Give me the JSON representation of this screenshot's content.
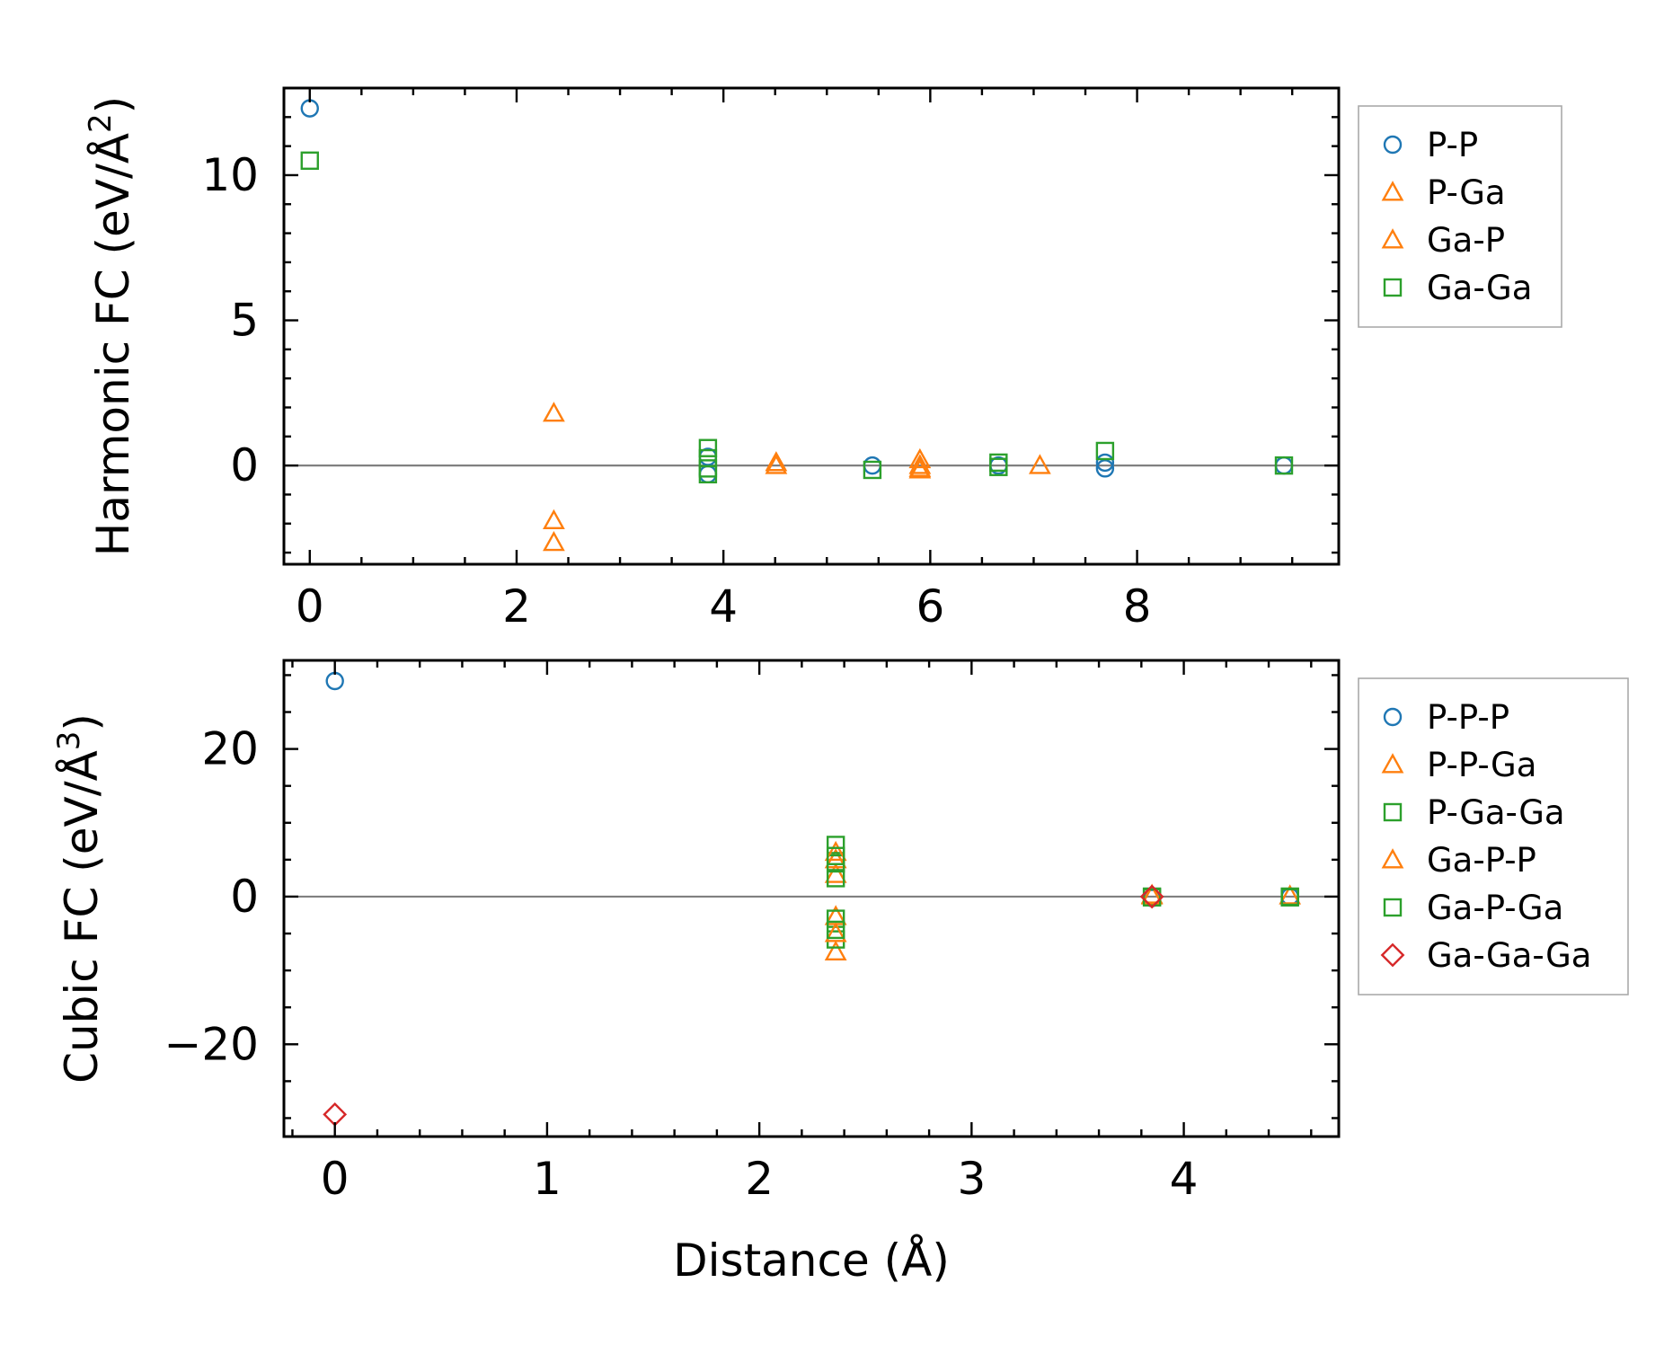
{
  "chart_data": [
    {
      "type": "scatter",
      "ylabel": "Harmonic FC (eV/Å²)",
      "ylabel_main": "Harmonic FC (eV/Å",
      "ylabel_sup": "2",
      "ylabel_close": ")",
      "xlabel": "",
      "xlim": [
        -0.25,
        9.95
      ],
      "ylim": [
        -3.4,
        13.0
      ],
      "x_major_ticks": [
        0,
        2,
        4,
        6,
        8
      ],
      "x_tick_labels": [
        "0",
        "2",
        "4",
        "6",
        "8"
      ],
      "x_minor_step": 0.5,
      "y_major_ticks": [
        0,
        5,
        10
      ],
      "y_tick_labels": [
        "0",
        "5",
        "10"
      ],
      "y_minor_step": 1,
      "zero_line": true,
      "grid": false,
      "legend_position": "outside-right-top",
      "series": [
        {
          "name": "P-P",
          "marker": "circle",
          "color": "#1f77b4",
          "points": [
            [
              0.0,
              12.3
            ],
            [
              3.85,
              0.3
            ],
            [
              3.85,
              -0.3
            ],
            [
              5.44,
              0.0
            ],
            [
              6.66,
              0.0
            ],
            [
              7.69,
              0.1
            ],
            [
              7.69,
              -0.1
            ],
            [
              9.42,
              0.0
            ]
          ]
        },
        {
          "name": "P-Ga",
          "marker": "triangle",
          "color": "#ff7f0e",
          "points": [
            [
              2.36,
              1.8
            ],
            [
              2.36,
              -1.9
            ],
            [
              2.36,
              -2.65
            ],
            [
              4.51,
              0.1
            ],
            [
              5.9,
              0.2
            ],
            [
              5.9,
              -0.1
            ],
            [
              7.06,
              0.0
            ]
          ]
        },
        {
          "name": "Ga-P",
          "marker": "triangle",
          "color": "#ff7f0e",
          "points": [
            [
              4.51,
              0.0
            ],
            [
              5.9,
              0.0
            ],
            [
              5.9,
              -0.15
            ]
          ]
        },
        {
          "name": "Ga-Ga",
          "marker": "square",
          "color": "#2ca02c",
          "points": [
            [
              0.0,
              10.5
            ],
            [
              3.85,
              0.6
            ],
            [
              3.85,
              0.25
            ],
            [
              3.85,
              -0.1
            ],
            [
              3.85,
              -0.3
            ],
            [
              5.44,
              -0.15
            ],
            [
              6.66,
              0.1
            ],
            [
              6.66,
              -0.05
            ],
            [
              7.69,
              0.5
            ],
            [
              9.42,
              0.0
            ]
          ]
        }
      ]
    },
    {
      "type": "scatter",
      "ylabel": "Cubic FC (eV/Å³)",
      "ylabel_main": "Cubic FC (eV/Å",
      "ylabel_sup": "3",
      "ylabel_close": ")",
      "xlabel": "Distance (Å)",
      "xlim": [
        -0.24,
        4.73
      ],
      "ylim": [
        -32.5,
        32.0
      ],
      "x_major_ticks": [
        0,
        1,
        2,
        3,
        4
      ],
      "x_tick_labels": [
        "0",
        "1",
        "2",
        "3",
        "4"
      ],
      "x_minor_step": 0.2,
      "y_major_ticks": [
        -20,
        0,
        20
      ],
      "y_tick_labels": [
        "−20",
        "0",
        "20"
      ],
      "y_minor_step": 5,
      "zero_line": true,
      "grid": false,
      "legend_position": "outside-right-top",
      "series": [
        {
          "name": "P-P-P",
          "marker": "circle",
          "color": "#1f77b4",
          "points": [
            [
              0.0,
              29.2
            ],
            [
              3.85,
              -0.2
            ],
            [
              4.5,
              0.0
            ]
          ]
        },
        {
          "name": "P-P-Ga",
          "marker": "triangle",
          "color": "#ff7f0e",
          "points": [
            [
              2.36,
              5.0
            ],
            [
              2.36,
              3.0
            ],
            [
              2.36,
              -2.7
            ],
            [
              2.36,
              -7.5
            ],
            [
              3.85,
              0.2
            ],
            [
              4.5,
              0.1
            ]
          ]
        },
        {
          "name": "P-Ga-Ga",
          "marker": "square",
          "color": "#2ca02c",
          "points": [
            [
              2.36,
              7.0
            ],
            [
              2.36,
              4.5
            ],
            [
              2.36,
              2.5
            ],
            [
              2.36,
              -3.0
            ],
            [
              2.36,
              -5.8
            ],
            [
              3.85,
              0.0
            ],
            [
              4.5,
              -0.1
            ]
          ]
        },
        {
          "name": "Ga-P-P",
          "marker": "triangle",
          "color": "#ff7f0e",
          "points": [
            [
              2.36,
              6.0
            ],
            [
              2.36,
              -5.0
            ],
            [
              3.85,
              0.1
            ]
          ]
        },
        {
          "name": "Ga-P-Ga",
          "marker": "square",
          "color": "#2ca02c",
          "points": [
            [
              2.36,
              5.5
            ],
            [
              2.36,
              -4.5
            ],
            [
              3.85,
              -0.1
            ],
            [
              4.5,
              0.0
            ]
          ]
        },
        {
          "name": "Ga-Ga-Ga",
          "marker": "diamond",
          "color": "#d62728",
          "points": [
            [
              0.0,
              -29.5
            ],
            [
              3.85,
              0.0
            ]
          ]
        }
      ]
    }
  ]
}
